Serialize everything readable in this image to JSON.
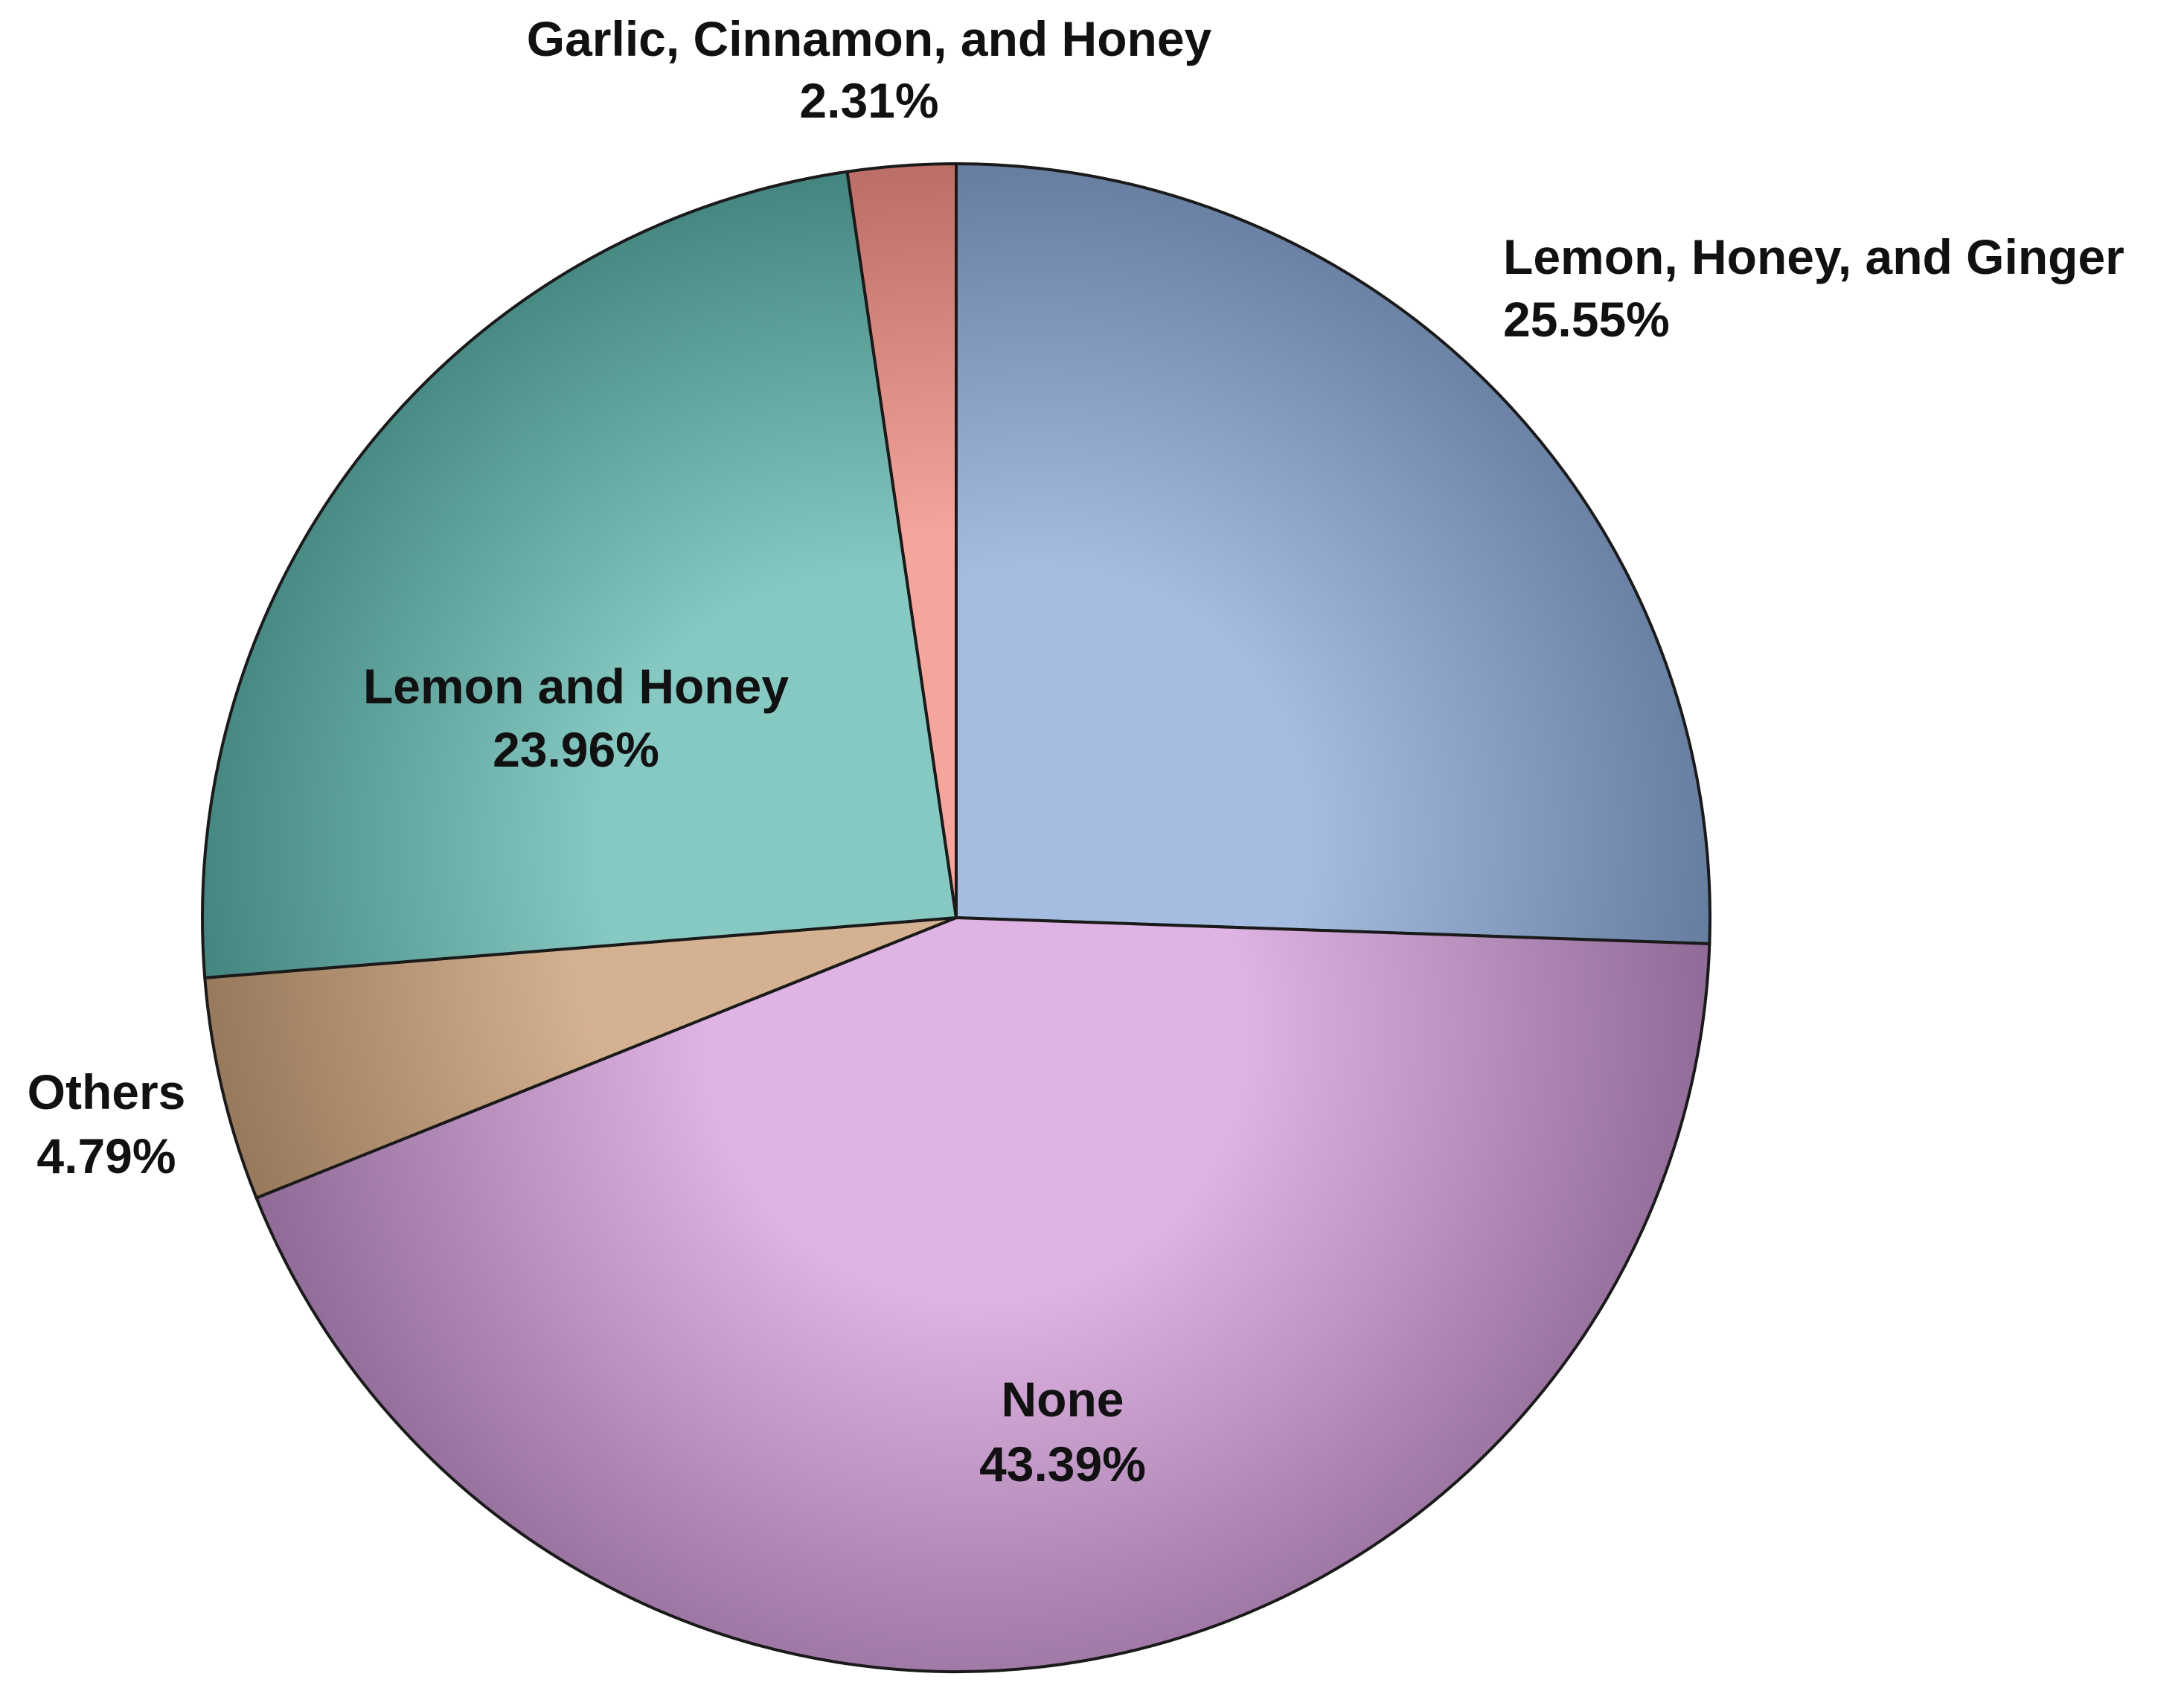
{
  "chart_data": {
    "type": "pie",
    "title": "",
    "start_angle_deg": 90,
    "direction": "clockwise",
    "slices": [
      {
        "label": "Lemon, Honey, and Ginger",
        "value": 25.55,
        "value_label": "25.55%",
        "color_light": "#a5bde0",
        "color_dark": "#586f92"
      },
      {
        "label": "None",
        "value": 43.39,
        "value_label": "43.39%",
        "color_light": "#dfb3e3",
        "color_dark": "#8b6692"
      },
      {
        "label": "Others",
        "value": 4.79,
        "value_label": "4.79%",
        "color_light": "#d4b190",
        "color_dark": "#84664a"
      },
      {
        "label": "Lemon and Honey",
        "value": 23.96,
        "value_label": "23.96%",
        "color_light": "#86c9c2",
        "color_dark": "#347570"
      },
      {
        "label": "Garlic, Cinnamon, and Honey",
        "value": 2.31,
        "value_label": "2.31%",
        "color_light": "#f5a59b",
        "color_dark": "#a85a55"
      }
    ]
  }
}
